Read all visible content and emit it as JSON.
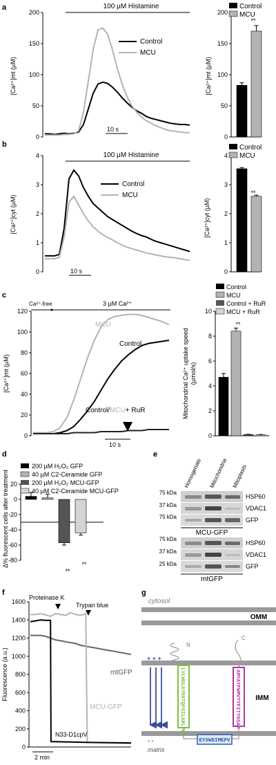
{
  "colors": {
    "control": "#000000",
    "mcu": "#b3b3b3",
    "dark_gray": "#555555",
    "light_gray": "#d4d4d4",
    "green": "#7ac143",
    "magenta": "#b0349a",
    "blue": "#2f5aa8",
    "arrow_blue": "#3a4f9a"
  },
  "panels": {
    "a": {
      "label": "a",
      "trace": {
        "stimulus": "100 µM Histamine",
        "ylabel": "[Ca²⁺]mt (µM)",
        "yticks": [
          "0",
          "50",
          "100",
          "150",
          "200"
        ],
        "scalebar": "10 s",
        "legend": [
          "Control",
          "MCU"
        ]
      },
      "bar": {
        "legend": [
          "Control",
          "MCU"
        ],
        "ylabel": "[Ca²⁺]mt (µM)",
        "yticks": [
          "0",
          "50",
          "100",
          "150",
          "200"
        ],
        "sig": "**"
      }
    },
    "b": {
      "label": "b",
      "trace": {
        "stimulus": "100 µM Histamine",
        "ylabel": "[Ca²⁺]cyt (µM)",
        "yticks": [
          "0",
          "1",
          "2",
          "3",
          "4"
        ],
        "scalebar": "10 s",
        "legend": [
          "Control",
          "MCU"
        ]
      },
      "bar": {
        "legend": [
          "Control",
          "MCU"
        ],
        "ylabel": "[Ca²⁺]cyt (µM)",
        "yticks": [
          "0",
          "1",
          "2",
          "3",
          "4"
        ],
        "sig": "**"
      }
    },
    "c": {
      "label": "c",
      "trace": {
        "phase1": "Ca²⁺-free",
        "phase2": "3 µM Ca²⁺",
        "ylabel": "[Ca²⁺]mt (µM)",
        "yticks": [
          "0",
          "20",
          "40",
          "60",
          "80",
          "100",
          "120"
        ],
        "scalebar": "10 s",
        "labels": {
          "mcu": "MCU",
          "control": "Control",
          "rur_a": "Control/",
          "rur_b": "MCU",
          "rur_c": "+ RuR"
        }
      },
      "bar": {
        "legend": [
          "Control",
          "MCU",
          "Control + RuR",
          "MCU + RuR"
        ],
        "ylabel_1": "Mitochondrial Ca²⁺ uptake speed",
        "ylabel_2": "(µmol/s)",
        "yticks": [
          "0",
          "2",
          "4",
          "6",
          "8",
          "10"
        ],
        "sig": "**"
      }
    },
    "d": {
      "label": "d",
      "legend": [
        "200 µM H₂O₂ GFP",
        "40 µM C2-Ceramide GFP",
        "200 µM H₂O₂ MCU-GFP",
        "40 µM C2-Ceramide MCU-GFP"
      ],
      "ylabel": "Δ% fluorescent cells after treatment",
      "yticks": [
        "20",
        "0",
        "-20",
        "-40",
        "-60",
        "-80"
      ],
      "sig": [
        "**",
        "**"
      ]
    },
    "e": {
      "label": "e",
      "columns": [
        "Homogenate",
        "Mitochondria",
        "Mitoplasts"
      ],
      "kda": [
        "75 kDa",
        "37 kDa",
        "75 kDa",
        "75 kDa",
        "37 kDa",
        "25 kDa"
      ],
      "bands": [
        "HSP60",
        "VDAC1",
        "GFP",
        "HSP60",
        "VDAC1",
        "GFP"
      ],
      "groups": [
        "MCU-GFP",
        "mtGFP"
      ]
    },
    "f": {
      "label": "f",
      "events": [
        "Proteinase K",
        "Trypan blue"
      ],
      "ylabel": "Fluorescence (a.u.)",
      "yticks": [
        "0",
        "200",
        "400",
        "600",
        "800",
        "1000",
        "1200",
        "1400",
        "1600"
      ],
      "scalebar": "2 min",
      "traces": [
        "mtGFP",
        "MCU-GFP",
        "N33-D1cpV"
      ]
    },
    "g": {
      "label": "g",
      "cytosol": "cytosol",
      "omm": "OMM",
      "imm": "IMM",
      "matrix": "matrix",
      "n": "N",
      "c": "C",
      "plus": "+ + +",
      "minus": "- -",
      "tm1": "LVLWGLAYMATQFGILARLTWW",
      "tm2": "AMYAYFWMVTYFITYGSAM",
      "loop": "EYSWDIMEPV"
    }
  },
  "chart_data": [
    {
      "panel": "a-left",
      "type": "line",
      "title": "100 µM Histamine",
      "ylabel": "[Ca²⁺]mt (µM)",
      "ylim": [
        0,
        200
      ],
      "x": [
        0,
        2,
        4,
        6,
        8,
        10,
        12,
        14,
        16,
        18,
        20,
        22,
        24,
        26,
        28,
        30,
        32,
        34,
        36,
        38,
        40,
        42,
        44,
        46,
        48,
        50,
        52,
        54,
        56,
        58,
        60
      ],
      "series": [
        {
          "name": "Control",
          "values": [
            5,
            5,
            4,
            5,
            6,
            5,
            6,
            8,
            20,
            45,
            70,
            85,
            88,
            86,
            80,
            72,
            63,
            55,
            48,
            42,
            38,
            33,
            30,
            28,
            26,
            24,
            22,
            21,
            20,
            20,
            19
          ]
        },
        {
          "name": "MCU",
          "values": [
            3,
            3,
            3,
            3,
            4,
            4,
            5,
            10,
            40,
            90,
            140,
            172,
            175,
            165,
            140,
            110,
            85,
            65,
            50,
            40,
            32,
            26,
            22,
            18,
            15,
            12,
            10,
            9,
            8,
            7,
            7
          ]
        }
      ]
    },
    {
      "panel": "a-right",
      "type": "bar",
      "categories": [
        "Control",
        "MCU"
      ],
      "values": [
        83,
        170
      ],
      "errors": [
        4,
        9
      ],
      "ylabel": "[Ca²⁺]mt (µM)",
      "ylim": [
        0,
        200
      ],
      "legend": "top-right"
    },
    {
      "panel": "b-left",
      "type": "line",
      "title": "100 µM Histamine",
      "ylabel": "[Ca²⁺]cyt (µM)",
      "ylim": [
        0,
        4
      ],
      "x": [
        0,
        2,
        4,
        6,
        8,
        10,
        12,
        14,
        16,
        18,
        20,
        22,
        24,
        26,
        28,
        30,
        32,
        34,
        36,
        38,
        40,
        42,
        44,
        46,
        48,
        50,
        52,
        54,
        56,
        58,
        60
      ],
      "series": [
        {
          "name": "Control",
          "values": [
            0.55,
            0.55,
            0.55,
            0.6,
            1.5,
            3.2,
            3.5,
            3.3,
            2.9,
            2.6,
            2.35,
            2.2,
            2.05,
            1.9,
            1.8,
            1.7,
            1.6,
            1.5,
            1.4,
            1.32,
            1.25,
            1.2,
            1.12,
            1.05,
            1.0,
            0.95,
            0.9,
            0.85,
            0.8,
            0.75,
            0.7
          ]
        },
        {
          "name": "MCU",
          "values": [
            0.45,
            0.45,
            0.45,
            0.5,
            1.2,
            2.4,
            2.6,
            2.3,
            2.0,
            1.75,
            1.55,
            1.4,
            1.28,
            1.18,
            1.1,
            1.0,
            0.92,
            0.85,
            0.8,
            0.75,
            0.7,
            0.65,
            0.62,
            0.58,
            0.55,
            0.52,
            0.5,
            0.48,
            0.45,
            0.42,
            0.4
          ]
        }
      ]
    },
    {
      "panel": "b-right",
      "type": "bar",
      "categories": [
        "Control",
        "MCU"
      ],
      "values": [
        3.55,
        2.6
      ],
      "errors": [
        0.04,
        0.04
      ],
      "ylabel": "[Ca²⁺]cyt (µM)",
      "ylim": [
        0,
        4
      ],
      "legend": "top-right"
    },
    {
      "panel": "c-left",
      "type": "line",
      "ylabel": "[Ca²⁺]mt (µM)",
      "ylim": [
        0,
        120
      ],
      "x": [
        0,
        4,
        8,
        12,
        16,
        20,
        24,
        28,
        32,
        36,
        40,
        44,
        48,
        52,
        56,
        60,
        64,
        68,
        72,
        76,
        80
      ],
      "series": [
        {
          "name": "Control",
          "values": [
            2,
            2,
            2,
            2,
            3,
            5,
            9,
            16,
            24,
            33,
            44,
            55,
            64,
            72,
            78,
            83,
            87,
            89,
            90,
            91,
            92
          ]
        },
        {
          "name": "MCU",
          "values": [
            3,
            3,
            3,
            4,
            8,
            18,
            35,
            55,
            75,
            92,
            105,
            112,
            115,
            116,
            117,
            117,
            116,
            114,
            112,
            110,
            107
          ]
        },
        {
          "name": "Control/MCU + RuR",
          "values": [
            2,
            2,
            2,
            2,
            2,
            2,
            3,
            3,
            3,
            3,
            4,
            4,
            4,
            4,
            5,
            5,
            5,
            6,
            6,
            6,
            6
          ]
        }
      ]
    },
    {
      "panel": "c-right",
      "type": "bar",
      "categories": [
        "Control",
        "MCU",
        "Control + RuR",
        "MCU + RuR"
      ],
      "values": [
        4.7,
        8.4,
        0.1,
        0.08
      ],
      "errors": [
        0.3,
        0.25,
        0.02,
        0.02
      ],
      "ylabel": "Mitochondrial Ca²⁺ uptake speed (µmol/s)",
      "ylim": [
        0,
        10
      ],
      "legend": "top-right"
    },
    {
      "panel": "d",
      "type": "bar",
      "categories": [
        "200 µM H₂O₂ GFP",
        "40 µM C2-Ceramide GFP",
        "200 µM H₂O₂ MCU-GFP",
        "40 µM C2-Ceramide MCU-GFP"
      ],
      "values": [
        4,
        2,
        -57,
        -44
      ],
      "errors": [
        5,
        5,
        3,
        3
      ],
      "ylabel": "Δ% fluorescent cells after treatment",
      "ylim": [
        -80,
        20
      ],
      "legend": "top-left"
    },
    {
      "panel": "f",
      "type": "line",
      "ylabel": "Fluorescence (a.u.)",
      "ylim": [
        0,
        1600
      ],
      "x": [
        0,
        1,
        2,
        3,
        4,
        5,
        6,
        7,
        8,
        9,
        10,
        11,
        12,
        13,
        14,
        15,
        16,
        17,
        18,
        19,
        20
      ],
      "series": [
        {
          "name": "MCU-GFP",
          "values": [
            1460,
            1460,
            1470,
            1455,
            1440,
            1470,
            1460,
            1450,
            1480,
            1460,
            1450,
            1470,
            1460,
            1450,
            1460,
            1470,
            1460,
            1450,
            1470,
            1450,
            1460
          ]
        },
        {
          "name": "mtGFP",
          "values": [
            1230,
            1230,
            1230,
            1220,
            1200,
            1180,
            1170,
            1160,
            1150,
            1140,
            1120,
            1110,
            1100,
            1090,
            1080,
            1070,
            1060,
            1050,
            1040,
            1030,
            1020
          ]
        },
        {
          "name": "N33-D1cpV",
          "values": [
            1380,
            1390,
            1400,
            1395,
            1395,
            1390,
            1380,
            1380,
            1380,
            1380,
            1380,
            1380,
            1380,
            1380,
            1380,
            1380,
            1380,
            1380,
            1380,
            1380,
            1380
          ]
        }
      ]
    }
  ]
}
